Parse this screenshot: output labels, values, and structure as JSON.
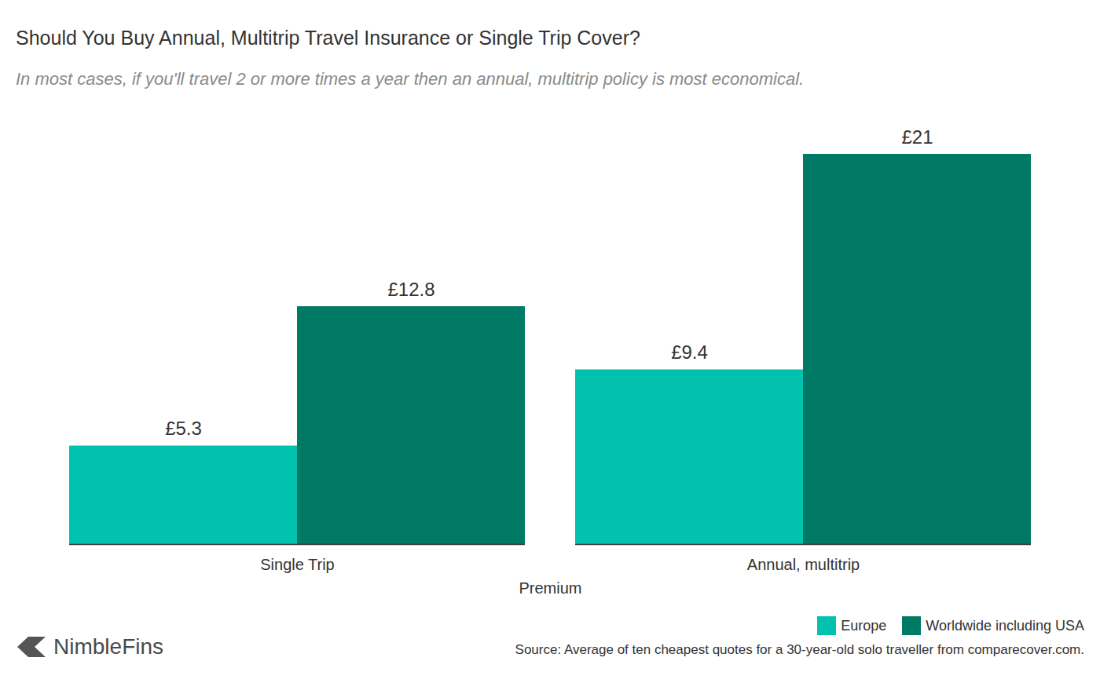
{
  "chart_data": {
    "type": "bar",
    "title": "Should You Buy Annual, Multitrip Travel Insurance or Single Trip Cover?",
    "subtitle": "In most cases, if you'll travel 2 or more times a year then an annual, multitrip policy is most economical.",
    "xlabel": "Premium",
    "categories": [
      "Single Trip",
      "Annual, multitrip"
    ],
    "series": [
      {
        "name": "Europe",
        "color": "#00c2ae",
        "values": [
          5.3,
          9.4
        ],
        "value_labels": [
          "£5.3",
          "£9.4"
        ]
      },
      {
        "name": "Worldwide including USA",
        "color": "#007a64",
        "values": [
          12.8,
          21
        ],
        "value_labels": [
          "£12.8",
          "£21"
        ]
      }
    ],
    "ylim": [
      0,
      21
    ],
    "grid": false,
    "legend": "bottom-right",
    "data_labels": true,
    "tick_labels": "x",
    "source": "Source: Average of ten cheapest quotes for a 30-year-old solo traveller from comparecover.com.",
    "brand": "NimbleFins"
  }
}
